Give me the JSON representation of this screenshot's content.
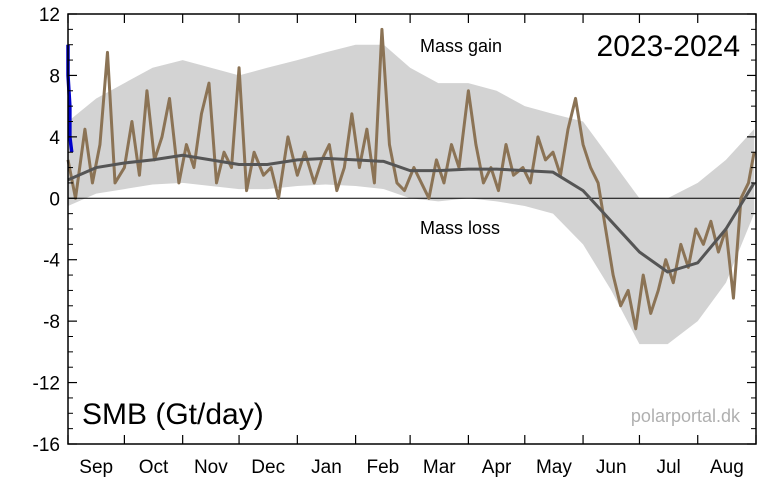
{
  "chart_data": {
    "type": "line",
    "season_label": "2023-2024",
    "ylabel": "SMB (Gt/day)",
    "ylim": [
      -16,
      12
    ],
    "yticks": [
      -16,
      -12,
      -8,
      -4,
      0,
      4,
      8,
      12
    ],
    "months": [
      "Sep",
      "Oct",
      "Nov",
      "Dec",
      "Jan",
      "Feb",
      "Mar",
      "Apr",
      "May",
      "Jun",
      "Jul",
      "Aug"
    ],
    "annotations": {
      "gain": "Mass gain",
      "loss": "Mass loss"
    },
    "credit": "polarportal.dk",
    "colors": {
      "current": "#8b7355",
      "mean": "#555555",
      "range": "#d3d3d3",
      "latest": "#0000cc"
    },
    "series": [
      {
        "name": "2023-2024",
        "x": [
          "2023-09-01",
          "2023-09-05",
          "2023-09-10",
          "2023-09-14",
          "2023-09-18",
          "2023-09-22",
          "2023-09-26",
          "2023-10-01",
          "2023-10-05",
          "2023-10-09",
          "2023-10-13",
          "2023-10-17",
          "2023-10-21",
          "2023-10-25",
          "2023-10-30",
          "2023-11-03",
          "2023-11-07",
          "2023-11-11",
          "2023-11-15",
          "2023-11-19",
          "2023-11-23",
          "2023-11-27",
          "2023-12-01",
          "2023-12-05",
          "2023-12-09",
          "2023-12-14",
          "2023-12-18",
          "2023-12-22",
          "2023-12-27",
          "2024-01-01",
          "2024-01-05",
          "2024-01-10",
          "2024-01-14",
          "2024-01-18",
          "2024-01-22",
          "2024-01-26",
          "2024-01-30",
          "2024-02-03",
          "2024-02-07",
          "2024-02-11",
          "2024-02-15",
          "2024-02-19",
          "2024-02-23",
          "2024-02-27",
          "2024-03-03",
          "2024-03-07",
          "2024-03-11",
          "2024-03-15",
          "2024-03-19",
          "2024-03-23",
          "2024-03-27",
          "2024-04-01",
          "2024-04-05",
          "2024-04-09",
          "2024-04-13",
          "2024-04-17",
          "2024-04-21",
          "2024-04-25",
          "2024-04-30",
          "2024-05-04",
          "2024-05-08",
          "2024-05-12",
          "2024-05-16",
          "2024-05-20",
          "2024-05-24",
          "2024-05-28",
          "2024-06-01",
          "2024-06-05",
          "2024-06-09",
          "2024-06-13",
          "2024-06-17",
          "2024-06-21",
          "2024-06-25",
          "2024-06-29",
          "2024-07-03",
          "2024-07-07",
          "2024-07-11",
          "2024-07-15",
          "2024-07-19",
          "2024-07-23",
          "2024-07-27",
          "2024-07-31",
          "2024-08-04",
          "2024-08-08",
          "2024-08-12",
          "2024-08-16",
          "2024-08-20",
          "2024-08-24",
          "2024-08-28",
          "2024-08-31"
        ],
        "y": [
          2.5,
          0.0,
          4.5,
          1.0,
          3.5,
          9.5,
          1.0,
          2.0,
          5.0,
          1.5,
          7.0,
          2.5,
          4.0,
          6.5,
          1.0,
          3.5,
          2.0,
          5.5,
          7.5,
          1.0,
          3.0,
          2.0,
          8.5,
          0.5,
          3.0,
          1.5,
          2.0,
          0.0,
          4.0,
          1.5,
          3.0,
          1.0,
          2.5,
          3.5,
          0.5,
          2.0,
          5.5,
          2.0,
          4.5,
          1.0,
          11.0,
          3.5,
          1.0,
          0.5,
          2.0,
          1.0,
          0.0,
          2.5,
          1.0,
          3.5,
          2.0,
          7.0,
          3.5,
          1.0,
          2.0,
          0.5,
          3.5,
          1.5,
          2.0,
          1.0,
          4.0,
          2.5,
          3.0,
          1.5,
          4.5,
          6.5,
          3.5,
          2.0,
          1.0,
          -2.0,
          -5.0,
          -7.0,
          -6.0,
          -8.5,
          -5.0,
          -7.5,
          -6.0,
          -4.0,
          -5.5,
          -3.0,
          -4.5,
          -2.0,
          -3.0,
          -1.5,
          -3.5,
          -2.0,
          -6.5,
          0.0,
          1.0,
          3.0
        ]
      },
      {
        "name": "Mean",
        "x": [
          "2023-09-01",
          "2023-09-16",
          "2023-10-01",
          "2023-10-16",
          "2023-11-01",
          "2023-11-16",
          "2023-12-01",
          "2023-12-16",
          "2024-01-01",
          "2024-01-16",
          "2024-02-01",
          "2024-02-16",
          "2024-03-01",
          "2024-03-16",
          "2024-04-01",
          "2024-04-16",
          "2024-05-01",
          "2024-05-16",
          "2024-06-01",
          "2024-06-16",
          "2024-07-01",
          "2024-07-16",
          "2024-08-01",
          "2024-08-16",
          "2024-08-31"
        ],
        "y": [
          1.2,
          2.0,
          2.3,
          2.5,
          2.8,
          2.5,
          2.2,
          2.2,
          2.5,
          2.6,
          2.5,
          2.4,
          1.8,
          1.8,
          1.9,
          1.9,
          1.8,
          1.7,
          0.5,
          -1.5,
          -3.5,
          -4.8,
          -4.2,
          -2.0,
          1.0
        ]
      },
      {
        "name": "Range",
        "x": [
          "2023-09-01",
          "2023-09-16",
          "2023-10-01",
          "2023-10-16",
          "2023-11-01",
          "2023-11-16",
          "2023-12-01",
          "2023-12-16",
          "2024-01-01",
          "2024-01-16",
          "2024-02-01",
          "2024-02-16",
          "2024-03-01",
          "2024-03-16",
          "2024-04-01",
          "2024-04-16",
          "2024-05-01",
          "2024-05-16",
          "2024-06-01",
          "2024-06-16",
          "2024-07-01",
          "2024-07-16",
          "2024-08-01",
          "2024-08-16",
          "2024-08-31"
        ],
        "upper": [
          5.0,
          6.5,
          7.5,
          8.5,
          9.0,
          8.5,
          8.0,
          8.5,
          9.0,
          9.5,
          10.0,
          10.0,
          8.5,
          7.5,
          7.5,
          7.0,
          6.0,
          5.5,
          5.0,
          2.5,
          0.0,
          0.0,
          1.0,
          2.5,
          4.5
        ],
        "lower": [
          -0.5,
          0.3,
          0.6,
          0.9,
          1.0,
          0.8,
          0.6,
          0.6,
          0.8,
          0.9,
          0.8,
          0.6,
          0.0,
          -0.2,
          0.0,
          -0.2,
          -0.5,
          -1.0,
          -3.0,
          -6.0,
          -9.5,
          -9.5,
          -8.0,
          -5.5,
          -1.0
        ]
      },
      {
        "name": "Latest",
        "x": [
          "2023-09-01",
          "2023-09-01",
          "2023-09-02",
          "2023-09-02",
          "2023-09-03"
        ],
        "y": [
          10.0,
          8.0,
          6.0,
          4.0,
          3.0
        ]
      }
    ]
  }
}
